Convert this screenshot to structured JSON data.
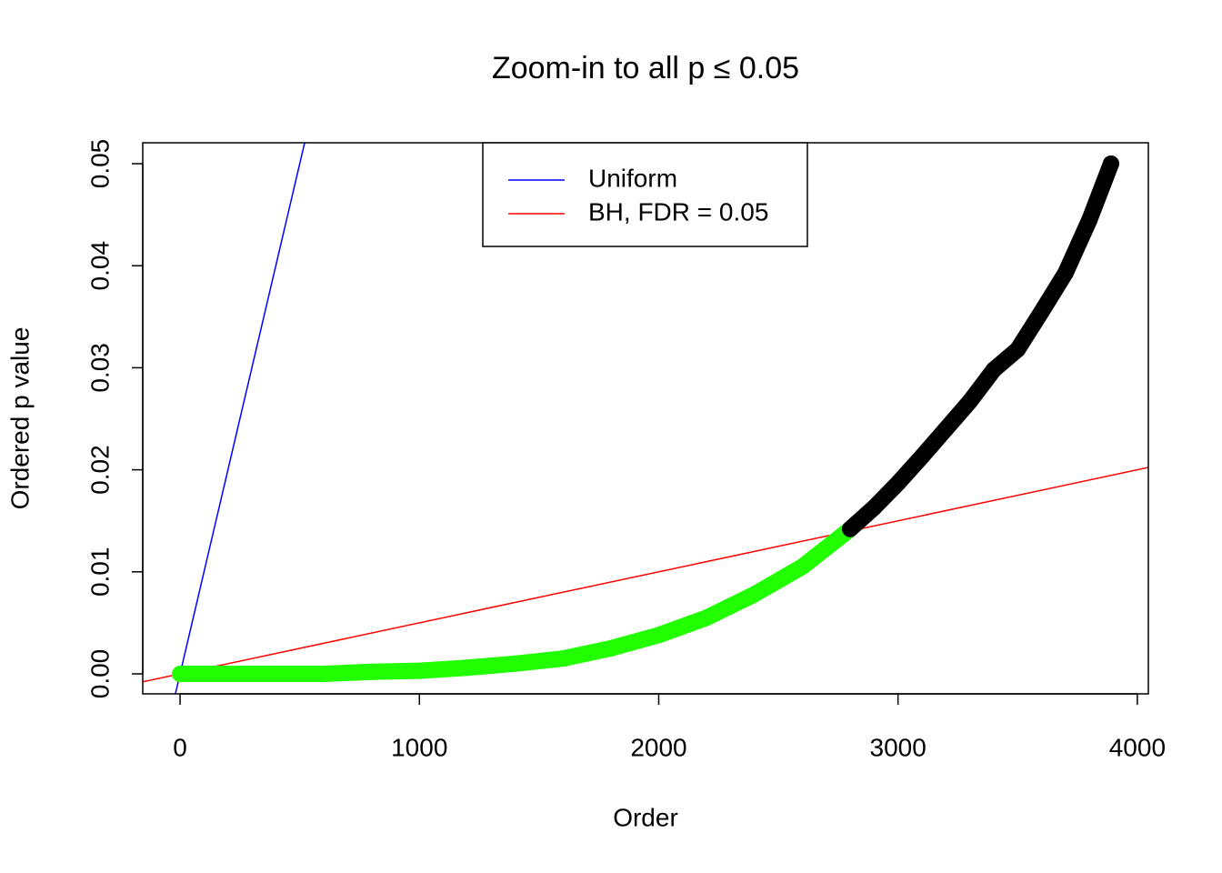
{
  "chart_data": {
    "type": "scatter",
    "title": "Zoom-in to all p ≤ 0.05",
    "x_label": "Order",
    "y_label": "Ordered p value",
    "xlim": [
      -156,
      4046
    ],
    "ylim": [
      -0.00196,
      0.05205
    ],
    "xticks": [
      0,
      1000,
      2000,
      3000,
      4000
    ],
    "yticks": [
      {
        "value": 0,
        "label": "0.00"
      },
      0.01,
      0.02,
      0.03,
      0.04,
      0.05
    ],
    "series": [
      {
        "color": "#22ff00",
        "x": [
          0,
          200,
          400,
          600,
          800,
          1000,
          1200,
          1400,
          1600,
          1800,
          2000,
          2200,
          2400,
          2600,
          2790
        ],
        "values": [
          0,
          0,
          0,
          0,
          0.0002,
          0.0003,
          0.0006,
          0.001,
          0.0015,
          0.0025,
          0.0038,
          0.0055,
          0.0078,
          0.0105,
          0.014
        ]
      },
      {
        "color": "#000000",
        "x": [
          2800,
          2900,
          3000,
          3100,
          3200,
          3300,
          3400,
          3500,
          3600,
          3700,
          3800,
          3890
        ],
        "values": [
          0.0142,
          0.0163,
          0.0187,
          0.0213,
          0.024,
          0.0267,
          0.0298,
          0.0318,
          0.0355,
          0.0393,
          0.0445,
          0.05
        ]
      }
    ],
    "lines": [
      {
        "name": "Uniform",
        "color": "#0000ff",
        "slope": 0.0001,
        "intercept": 0
      },
      {
        "name": "BH, FDR = 0.05",
        "color": "#ff0000",
        "slope": 5e-06,
        "intercept": 0
      }
    ]
  }
}
